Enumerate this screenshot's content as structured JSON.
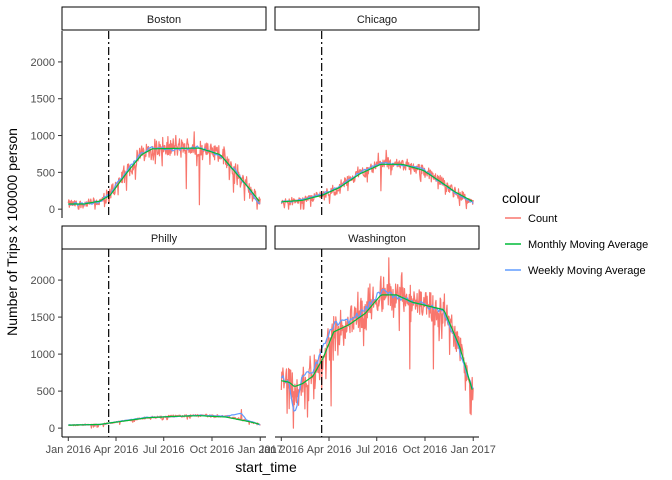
{
  "chart_data": {
    "type": "line",
    "xlabel": "start_time",
    "ylabel": "Number of Trips x 100000 person",
    "xlim": [
      "2015-12-20",
      "2017-01-12"
    ],
    "ylim": [
      -120,
      2420
    ],
    "x_ticks": [
      "2016-01-01",
      "2016-04-01",
      "2016-07-01",
      "2016-10-01",
      "2017-01-01"
    ],
    "x_tick_labels": [
      "Jan 2016",
      "Apr 2016",
      "Jul 2016",
      "Oct 2016",
      "Jan 2017"
    ],
    "y_ticks": [
      0,
      500,
      1000,
      1500,
      2000
    ],
    "y_tick_labels": [
      "0",
      "500",
      "1000",
      "1500",
      "2000"
    ],
    "vline": "2016-03-18",
    "legend": {
      "title": "colour",
      "position": "right",
      "items": [
        {
          "label": "Count",
          "color": "#F8766D"
        },
        {
          "label": "Monthly Moving Average",
          "color": "#00BA38"
        },
        {
          "label": "Weekly Moving Average",
          "color": "#619CFF"
        }
      ]
    },
    "facets": [
      {
        "name": "Boston",
        "count_profile": [
          [
            0,
            70
          ],
          [
            30,
            70
          ],
          [
            60,
            100
          ],
          [
            80,
            200
          ],
          [
            110,
            500
          ],
          [
            140,
            750
          ],
          [
            160,
            830
          ],
          [
            200,
            830
          ],
          [
            250,
            830
          ],
          [
            290,
            750
          ],
          [
            320,
            500
          ],
          [
            345,
            300
          ],
          [
            366,
            80
          ]
        ],
        "count_noise": 170,
        "monthly": [
          [
            0,
            70
          ],
          [
            30,
            70
          ],
          [
            60,
            110
          ],
          [
            80,
            190
          ],
          [
            110,
            480
          ],
          [
            140,
            740
          ],
          [
            160,
            820
          ],
          [
            200,
            825
          ],
          [
            250,
            830
          ],
          [
            290,
            740
          ],
          [
            320,
            490
          ],
          [
            345,
            280
          ],
          [
            366,
            90
          ]
        ],
        "weekly": [
          [
            0,
            75
          ],
          [
            30,
            65
          ],
          [
            60,
            105
          ],
          [
            80,
            210
          ],
          [
            110,
            520
          ],
          [
            140,
            760
          ],
          [
            160,
            840
          ],
          [
            200,
            810
          ],
          [
            250,
            840
          ],
          [
            290,
            720
          ],
          [
            320,
            510
          ],
          [
            345,
            260
          ],
          [
            366,
            70
          ]
        ],
        "dips": [
          [
            250,
            60
          ],
          [
            225,
            280
          ],
          [
            315,
            230
          ]
        ],
        "spikes": [
          [
            205,
            1000
          ],
          [
            240,
            1050
          ]
        ]
      },
      {
        "name": "Chicago",
        "count_profile": [
          [
            0,
            100
          ],
          [
            40,
            120
          ],
          [
            80,
            200
          ],
          [
            110,
            300
          ],
          [
            150,
            500
          ],
          [
            190,
            620
          ],
          [
            230,
            620
          ],
          [
            270,
            540
          ],
          [
            300,
            400
          ],
          [
            330,
            250
          ],
          [
            366,
            90
          ]
        ],
        "count_noise": 110,
        "monthly": [
          [
            0,
            100
          ],
          [
            40,
            120
          ],
          [
            80,
            195
          ],
          [
            110,
            290
          ],
          [
            150,
            480
          ],
          [
            190,
            610
          ],
          [
            230,
            610
          ],
          [
            270,
            530
          ],
          [
            300,
            390
          ],
          [
            330,
            240
          ],
          [
            366,
            100
          ]
        ],
        "weekly": [
          [
            0,
            95
          ],
          [
            40,
            125
          ],
          [
            80,
            210
          ],
          [
            110,
            300
          ],
          [
            150,
            500
          ],
          [
            190,
            625
          ],
          [
            230,
            600
          ],
          [
            270,
            545
          ],
          [
            300,
            380
          ],
          [
            330,
            230
          ],
          [
            366,
            85
          ]
        ],
        "dips": [
          [
            190,
            250
          ],
          [
            340,
            50
          ]
        ],
        "spikes": [
          [
            200,
            800
          ],
          [
            185,
            760
          ]
        ]
      },
      {
        "name": "Philly",
        "count_profile": [
          [
            0,
            40
          ],
          [
            60,
            50
          ],
          [
            100,
            90
          ],
          [
            150,
            140
          ],
          [
            200,
            160
          ],
          [
            250,
            170
          ],
          [
            300,
            160
          ],
          [
            340,
            100
          ],
          [
            366,
            50
          ]
        ],
        "count_noise": 30,
        "monthly": [
          [
            0,
            40
          ],
          [
            60,
            50
          ],
          [
            100,
            90
          ],
          [
            150,
            140
          ],
          [
            200,
            158
          ],
          [
            250,
            168
          ],
          [
            300,
            150
          ],
          [
            340,
            95
          ],
          [
            366,
            50
          ]
        ],
        "weekly": [
          [
            0,
            42
          ],
          [
            60,
            48
          ],
          [
            100,
            95
          ],
          [
            150,
            145
          ],
          [
            200,
            155
          ],
          [
            250,
            175
          ],
          [
            300,
            160
          ],
          [
            330,
            200
          ],
          [
            340,
            110
          ],
          [
            366,
            45
          ]
        ],
        "dips": [],
        "spikes": [
          [
            330,
            250
          ]
        ]
      },
      {
        "name": "Washington",
        "count_profile": [
          [
            0,
            650
          ],
          [
            15,
            700
          ],
          [
            25,
            500
          ],
          [
            40,
            600
          ],
          [
            60,
            700
          ],
          [
            80,
            900
          ],
          [
            100,
            1300
          ],
          [
            130,
            1450
          ],
          [
            160,
            1600
          ],
          [
            190,
            1800
          ],
          [
            220,
            1800
          ],
          [
            250,
            1700
          ],
          [
            280,
            1650
          ],
          [
            310,
            1600
          ],
          [
            340,
            1100
          ],
          [
            366,
            450
          ]
        ],
        "count_noise": 320,
        "monthly": [
          [
            0,
            640
          ],
          [
            15,
            620
          ],
          [
            25,
            560
          ],
          [
            40,
            600
          ],
          [
            60,
            700
          ],
          [
            80,
            950
          ],
          [
            100,
            1300
          ],
          [
            130,
            1400
          ],
          [
            160,
            1550
          ],
          [
            190,
            1800
          ],
          [
            220,
            1800
          ],
          [
            250,
            1700
          ],
          [
            280,
            1650
          ],
          [
            310,
            1600
          ],
          [
            340,
            1100
          ],
          [
            366,
            470
          ]
        ],
        "weekly": [
          [
            0,
            700
          ],
          [
            15,
            600
          ],
          [
            25,
            150
          ],
          [
            40,
            700
          ],
          [
            60,
            750
          ],
          [
            80,
            1100
          ],
          [
            100,
            1400
          ],
          [
            130,
            1450
          ],
          [
            160,
            1600
          ],
          [
            190,
            1850
          ],
          [
            220,
            1780
          ],
          [
            250,
            1720
          ],
          [
            280,
            1640
          ],
          [
            310,
            1580
          ],
          [
            340,
            1050
          ],
          [
            366,
            500
          ]
        ],
        "dips": [
          [
            23,
            0
          ],
          [
            50,
            150
          ],
          [
            95,
            300
          ],
          [
            245,
            800
          ],
          [
            290,
            800
          ],
          [
            360,
            200
          ]
        ],
        "spikes": [
          [
            205,
            2300
          ],
          [
            190,
            2050
          ],
          [
            230,
            2100
          ]
        ]
      }
    ]
  }
}
